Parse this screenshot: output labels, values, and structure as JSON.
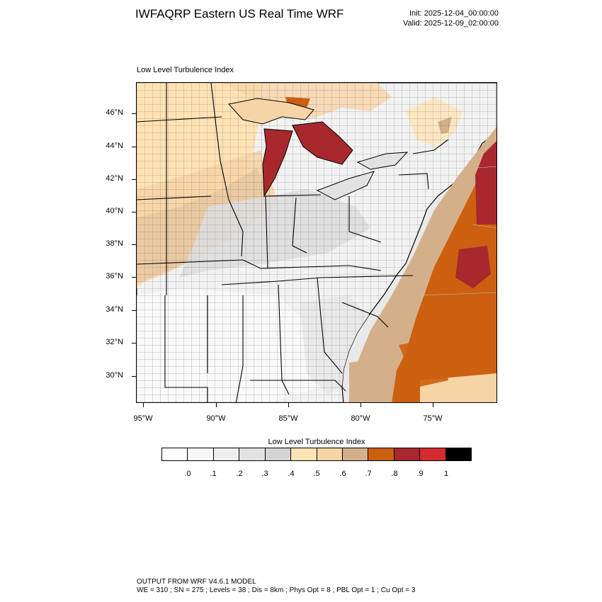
{
  "header": {
    "title": "IWFAQRP Eastern US Real Time WRF",
    "init": "Init: 2025-12-04_00:00:00",
    "valid": "Valid: 2025-12-09_02:00:00"
  },
  "plot": {
    "title": "Low Level Turbulence Index",
    "lat_labels": [
      "46°N",
      "44°N",
      "42°N",
      "40°N",
      "38°N",
      "36°N",
      "34°N",
      "32°N",
      "30°N"
    ],
    "lon_labels": [
      "95°W",
      "90°W",
      "85°W",
      "80°W",
      "75°W"
    ]
  },
  "colorbar": {
    "title": "Low Level Turbulence Index",
    "colors": [
      "#ffffff",
      "#f7f7f7",
      "#efefef",
      "#e2e2e2",
      "#d4d4d4",
      "#ffe3b5",
      "#f7d4a6",
      "#d4b08a",
      "#cc6010",
      "#a8282d",
      "#d42b30",
      "#000000"
    ],
    "tick_labels": [
      ".0",
      ".1",
      ".2",
      ".3",
      ".4",
      ".5",
      ".6",
      ".7",
      ".8",
      ".9",
      "1"
    ]
  },
  "footer": {
    "line1": "OUTPUT FROM WRF V4.6.1 MODEL",
    "line2": "WE = 310 ; SN = 275 ; Levels = 38 ; Dis = 8km ; Phys Opt = 8 ; PBL Opt = 1 ; Cu Opt = 3"
  }
}
